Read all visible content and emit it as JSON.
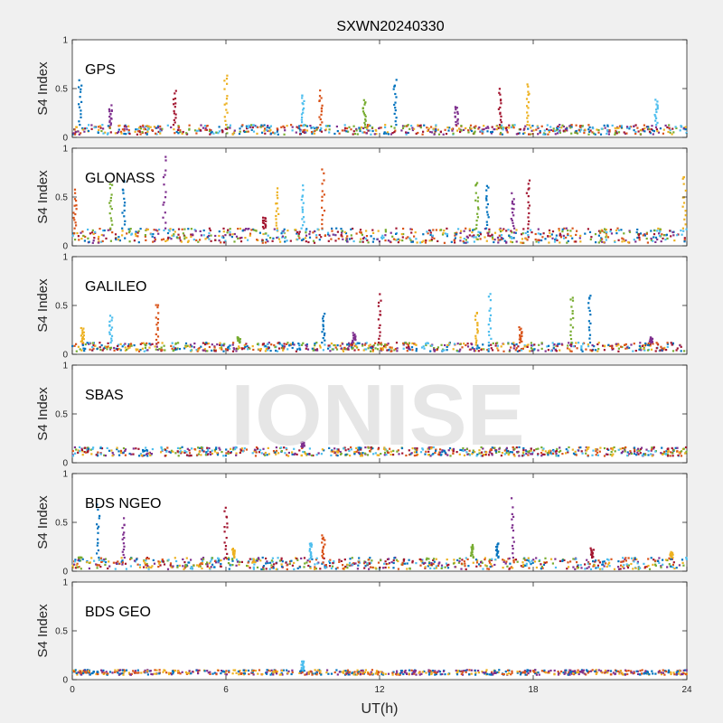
{
  "figure": {
    "title": "SXWN20240330",
    "watermark": "IONISE",
    "xlabel": "UT(h)",
    "ylabel": "S4 Index",
    "x_ticks": [
      "0",
      "6",
      "12",
      "18",
      "24"
    ],
    "y_ticks": [
      "0",
      "0.5",
      "1"
    ]
  },
  "chart_data": [
    {
      "type": "scatter",
      "system": "GPS",
      "ylabel": "S4 Index",
      "xlim": [
        0,
        24
      ],
      "ylim": [
        0,
        1
      ],
      "baseline": [
        0.03,
        0.13
      ],
      "spikes": [
        [
          0.3,
          0.62
        ],
        [
          1.5,
          0.33
        ],
        [
          4.0,
          0.48
        ],
        [
          6.0,
          0.68
        ],
        [
          9.0,
          0.48
        ],
        [
          9.7,
          0.5
        ],
        [
          11.4,
          0.41
        ],
        [
          12.6,
          0.62
        ],
        [
          15.0,
          0.34
        ],
        [
          16.7,
          0.5
        ],
        [
          17.8,
          0.58
        ],
        [
          22.8,
          0.42
        ]
      ]
    },
    {
      "type": "scatter",
      "system": "GLONASS",
      "ylabel": "S4 Index",
      "xlim": [
        0,
        24
      ],
      "ylim": [
        0,
        1
      ],
      "baseline": [
        0.03,
        0.18
      ],
      "spikes": [
        [
          0.1,
          0.58
        ],
        [
          1.5,
          0.7
        ],
        [
          2.0,
          0.72
        ],
        [
          3.6,
          0.98
        ],
        [
          7.5,
          0.3
        ],
        [
          8.0,
          0.6
        ],
        [
          9.0,
          0.62
        ],
        [
          9.8,
          0.8
        ],
        [
          15.8,
          0.7
        ],
        [
          16.2,
          0.68
        ],
        [
          17.2,
          0.55
        ],
        [
          17.8,
          0.72
        ],
        [
          23.9,
          0.78
        ]
      ]
    },
    {
      "type": "scatter",
      "system": "GALILEO",
      "ylabel": "S4 Index",
      "xlim": [
        0,
        24
      ],
      "ylim": [
        0,
        1
      ],
      "baseline": [
        0.03,
        0.12
      ],
      "spikes": [
        [
          0.4,
          0.28
        ],
        [
          1.5,
          0.42
        ],
        [
          3.3,
          0.55
        ],
        [
          6.5,
          0.18
        ],
        [
          9.8,
          0.45
        ],
        [
          11.0,
          0.22
        ],
        [
          12.0,
          0.65
        ],
        [
          15.8,
          0.45
        ],
        [
          16.3,
          0.65
        ],
        [
          17.5,
          0.28
        ],
        [
          19.5,
          0.65
        ],
        [
          20.2,
          0.68
        ],
        [
          22.6,
          0.18
        ]
      ]
    },
    {
      "type": "scatter",
      "system": "SBAS",
      "ylabel": "S4 Index",
      "xlim": [
        0,
        24
      ],
      "ylim": [
        0,
        1
      ],
      "baseline": [
        0.07,
        0.16
      ],
      "spikes": [
        [
          9.0,
          0.22
        ]
      ]
    },
    {
      "type": "scatter",
      "system": "BDS NGEO",
      "ylabel": "S4 Index",
      "xlim": [
        0,
        24
      ],
      "ylim": [
        0,
        1
      ],
      "baseline": [
        0.02,
        0.14
      ],
      "spikes": [
        [
          0.3,
          0.14
        ],
        [
          1.0,
          0.7
        ],
        [
          2.0,
          0.56
        ],
        [
          6.0,
          0.72
        ],
        [
          6.3,
          0.24
        ],
        [
          9.3,
          0.3
        ],
        [
          9.8,
          0.4
        ],
        [
          15.6,
          0.28
        ],
        [
          16.6,
          0.3
        ],
        [
          17.2,
          0.75
        ],
        [
          20.3,
          0.24
        ],
        [
          23.4,
          0.2
        ]
      ]
    },
    {
      "type": "scatter",
      "system": "BDS GEO",
      "ylabel": "S4 Index",
      "xlim": [
        0,
        24
      ],
      "ylim": [
        0,
        1
      ],
      "baseline": [
        0.05,
        0.1
      ],
      "spikes": [
        [
          9.0,
          0.2
        ]
      ]
    }
  ],
  "colors": {
    "series": [
      "#0072bd",
      "#d95319",
      "#edb120",
      "#7e2f8e",
      "#77ac30",
      "#4dbeee",
      "#a2142f"
    ],
    "background": "#f0f0f0",
    "axes": "#262626"
  }
}
